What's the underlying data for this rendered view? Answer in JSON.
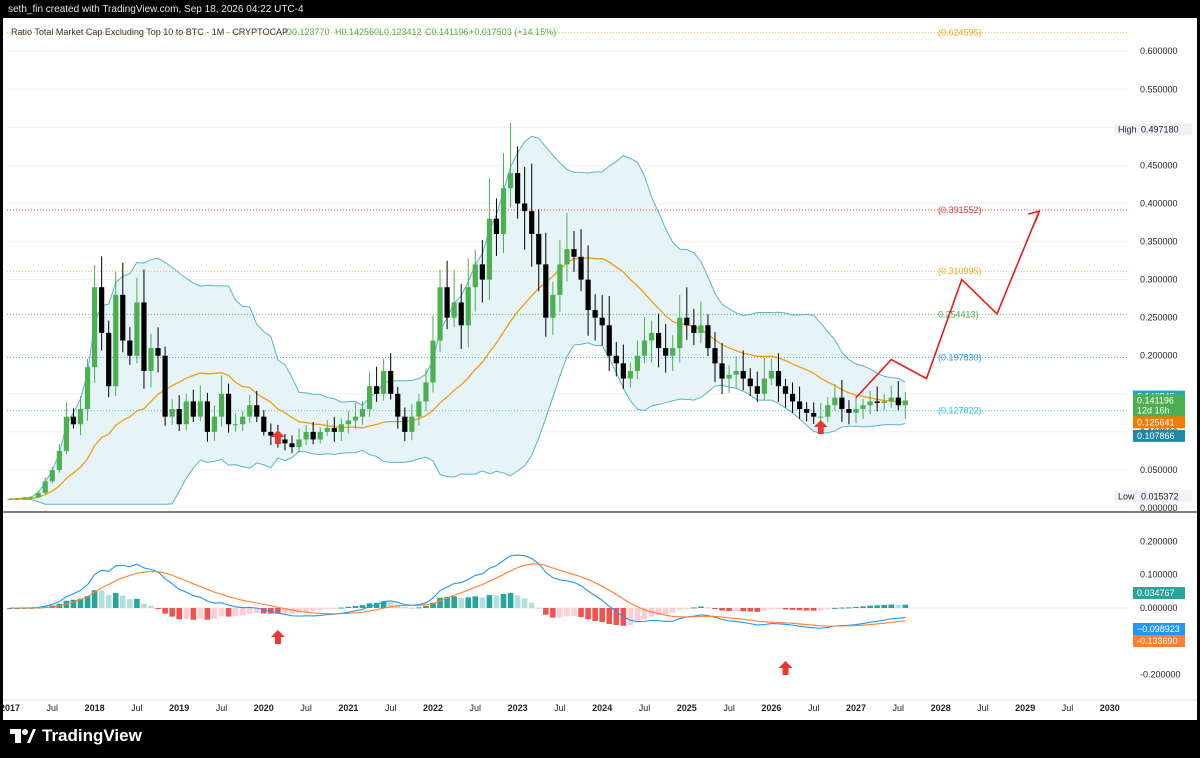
{
  "header": {
    "credit": "seth_fin created with TradingView.com, Sep 18, 2026 04:22 UTC-4"
  },
  "legend": {
    "title": "Ratio Total Market Cap Excluding Top 10 to BTC · 1M · CRYPTOCAP",
    "open": "O0.123770",
    "high": "H0.142560",
    "low": "L0.123412",
    "close": "C0.141196",
    "change": "+0.017503 (+14.15%)"
  },
  "brand": {
    "name": "TradingView"
  },
  "colors": {
    "up": "#4caf50",
    "down": "#000000",
    "band_line": "#5bb3c9",
    "band_fill": "#e6f4f8",
    "ma": "#f39c12",
    "macd": "#2196f3",
    "signal": "#ff7f32",
    "hist_up_strong": "#26a69a",
    "hist_up_weak": "#b2dfdb",
    "hist_down_strong": "#ef5350",
    "hist_down_weak": "#ffcdd2",
    "arrow": "#e53935",
    "projection": "#e02020"
  },
  "chart_data": [
    {
      "type": "candlestick",
      "title": "Ratio Total Market Cap Excluding Top 10 to BTC · 1M · CRYPTOCAP",
      "ylim": [
        0,
        0.62
      ],
      "y_ticks": [
        "0.600000",
        "0.550000",
        "0.500000",
        "0.450000",
        "0.400000",
        "0.350000",
        "0.300000",
        "0.250000",
        "0.200000",
        "0.150000",
        "0.100000",
        "0.050000",
        "0.000000"
      ],
      "x_ticks": [
        "2017",
        "Jul",
        "2018",
        "Jul",
        "2019",
        "Jul",
        "2020",
        "Jul",
        "2021",
        "Jul",
        "2022",
        "Jul",
        "2023",
        "Jul",
        "2024",
        "Jul",
        "2025",
        "Jul",
        "2026",
        "Jul",
        "2027",
        "Jul",
        "2028",
        "Jul",
        "2029",
        "Jul",
        "2030"
      ],
      "start": "2017-01",
      "closes": [
        0.012,
        0.012,
        0.013,
        0.014,
        0.02,
        0.035,
        0.05,
        0.075,
        0.12,
        0.11,
        0.13,
        0.185,
        0.29,
        0.23,
        0.16,
        0.28,
        0.22,
        0.2,
        0.27,
        0.18,
        0.21,
        0.2,
        0.12,
        0.13,
        0.11,
        0.14,
        0.12,
        0.14,
        0.1,
        0.12,
        0.15,
        0.11,
        0.11,
        0.12,
        0.135,
        0.12,
        0.1,
        0.095,
        0.09,
        0.085,
        0.08,
        0.09,
        0.1,
        0.09,
        0.1,
        0.105,
        0.1,
        0.11,
        0.115,
        0.12,
        0.13,
        0.16,
        0.15,
        0.18,
        0.15,
        0.12,
        0.1,
        0.12,
        0.14,
        0.165,
        0.22,
        0.29,
        0.25,
        0.27,
        0.24,
        0.29,
        0.32,
        0.3,
        0.38,
        0.36,
        0.42,
        0.44,
        0.4,
        0.39,
        0.36,
        0.32,
        0.25,
        0.28,
        0.32,
        0.34,
        0.33,
        0.3,
        0.26,
        0.25,
        0.24,
        0.2,
        0.19,
        0.17,
        0.18,
        0.2,
        0.22,
        0.23,
        0.21,
        0.2,
        0.21,
        0.25,
        0.24,
        0.23,
        0.24,
        0.21,
        0.19,
        0.17,
        0.175,
        0.18,
        0.17,
        0.16,
        0.15,
        0.17,
        0.18,
        0.16,
        0.15,
        0.14,
        0.13,
        0.125,
        0.12,
        0.12,
        0.135,
        0.145,
        0.13,
        0.125,
        0.13,
        0.135,
        0.14,
        0.138,
        0.14,
        0.145,
        0.135,
        0.1412
      ],
      "bollinger_upper_line": "Bollinger upper band",
      "labels": {
        "high": "High",
        "high_value": "0.497180",
        "low": "Low",
        "low_value": "0.015372",
        "close_value": "0.141196",
        "countdown": "12d 16h",
        "ma_value": "0.125641",
        "upper_value": "0.146345",
        "lower_value": "0.107866"
      },
      "levels": [
        {
          "value": 0.624595,
          "label": "(0.624595)",
          "color": "#f5a623"
        },
        {
          "value": 0.391552,
          "label": "(0.391552)",
          "color": "#e53935"
        },
        {
          "value": 0.310995,
          "label": "(0.310995)",
          "color": "#f5a623"
        },
        {
          "value": 0.254413,
          "label": "0.254413)",
          "color": "#4caf50"
        },
        {
          "value": 0.19783,
          "label": "(0.197830)",
          "color": "#2196f3"
        },
        {
          "value": 0.127822,
          "label": "(0.127822)",
          "color": "#26c6da"
        }
      ],
      "projection_path": [
        {
          "date": "2027-01",
          "y": 0.145
        },
        {
          "date": "2027-06",
          "y": 0.195
        },
        {
          "date": "2027-11",
          "y": 0.17
        },
        {
          "date": "2028-04",
          "y": 0.3
        },
        {
          "date": "2028-09",
          "y": 0.255
        },
        {
          "date": "2029-03",
          "y": 0.39
        }
      ]
    },
    {
      "type": "bar",
      "title": "MACD",
      "ylim": [
        -0.27,
        0.27
      ],
      "y_ticks": [
        "0.200000",
        "0.100000",
        "0.000000",
        "-0.200000"
      ],
      "labels": {
        "histogram_value": "0.034767",
        "macd_value": "−0.098923",
        "signal_value": "-0.133690"
      }
    }
  ]
}
